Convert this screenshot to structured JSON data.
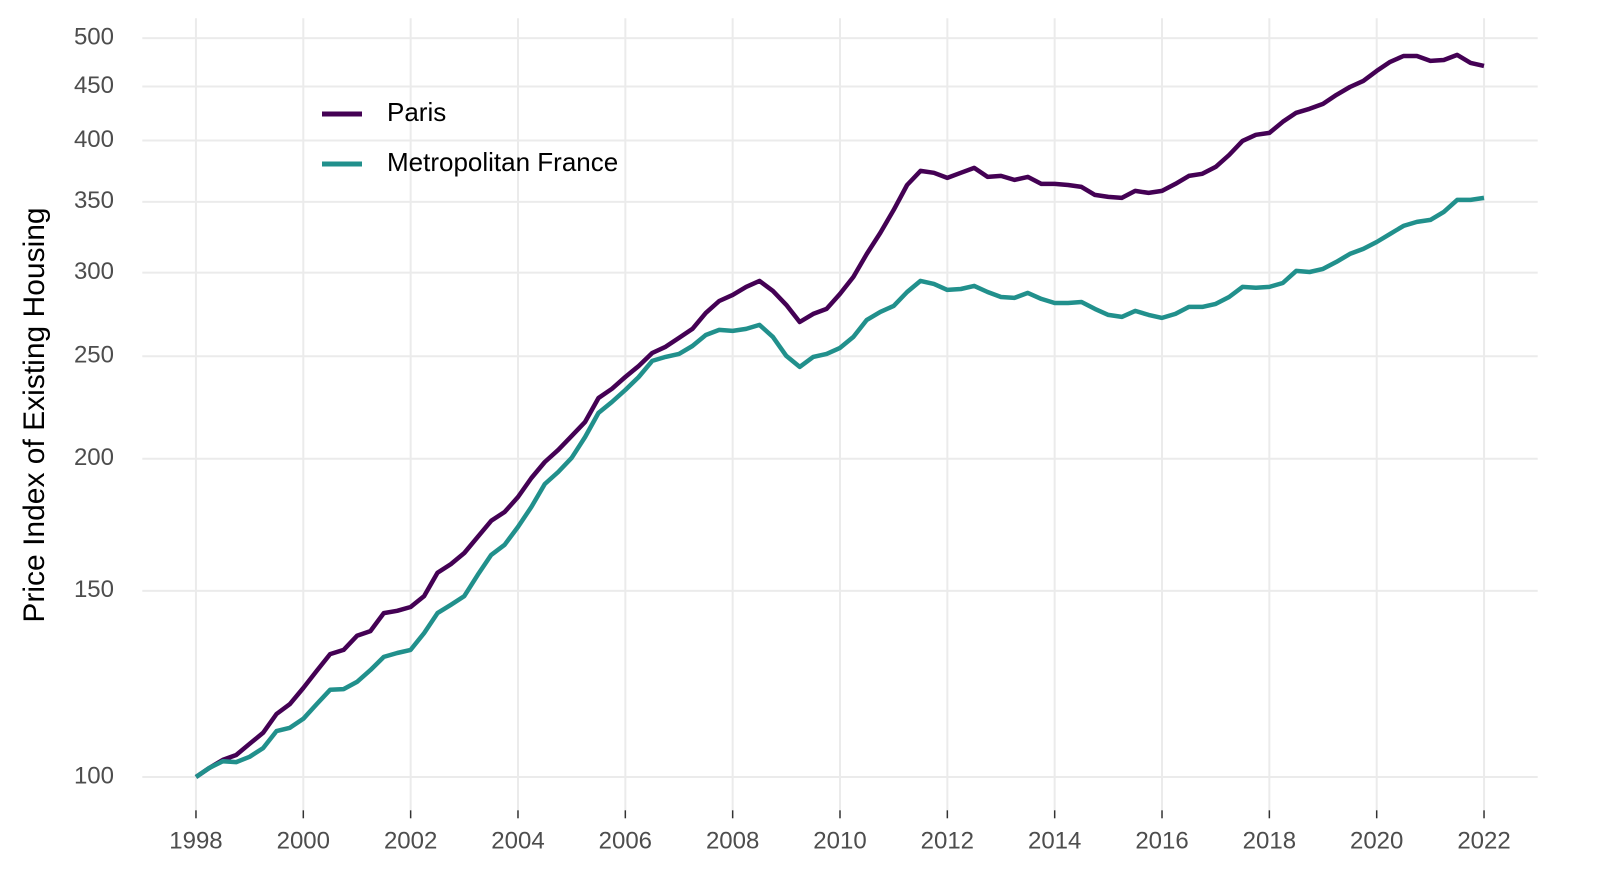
{
  "chart_data": {
    "type": "line",
    "y_label": "Price Index of Existing Housing",
    "log_y": true,
    "grid": true,
    "legend_position": "top-left",
    "x": [
      1998,
      1998.25,
      1998.5,
      1998.75,
      1999,
      1999.25,
      1999.5,
      1999.75,
      2000,
      2000.25,
      2000.5,
      2000.75,
      2001,
      2001.25,
      2001.5,
      2001.75,
      2002,
      2002.25,
      2002.5,
      2002.75,
      2003,
      2003.25,
      2003.5,
      2003.75,
      2004,
      2004.25,
      2004.5,
      2004.75,
      2005,
      2005.25,
      2005.5,
      2005.75,
      2006,
      2006.25,
      2006.5,
      2006.75,
      2007,
      2007.25,
      2007.5,
      2007.75,
      2008,
      2008.25,
      2008.5,
      2008.75,
      2009,
      2009.25,
      2009.5,
      2009.75,
      2010,
      2010.25,
      2010.5,
      2010.75,
      2011,
      2011.25,
      2011.5,
      2011.75,
      2012,
      2012.25,
      2012.5,
      2012.75,
      2013,
      2013.25,
      2013.5,
      2013.75,
      2014,
      2014.25,
      2014.5,
      2014.75,
      2015,
      2015.25,
      2015.5,
      2015.75,
      2016,
      2016.25,
      2016.5,
      2016.75,
      2017,
      2017.25,
      2017.5,
      2017.75,
      2018,
      2018.25,
      2018.5,
      2018.75,
      2019,
      2019.25,
      2019.5,
      2019.75,
      2020,
      2020.25,
      2020.5,
      2020.75,
      2021,
      2021.25,
      2021.5,
      2021.75,
      2022
    ],
    "series": [
      {
        "name": "Paris",
        "color": "#440154",
        "values": [
          100,
          102.0,
          103.8,
          104.9,
          107.5,
          110.1,
          114.7,
          117.2,
          121.4,
          126.0,
          130.7,
          131.9,
          136.0,
          137.4,
          142.9,
          143.6,
          144.8,
          148.3,
          156.0,
          159.0,
          162.9,
          168.7,
          174.7,
          178.1,
          184.0,
          191.8,
          198.6,
          203.9,
          210.2,
          216.7,
          228.3,
          232.9,
          239.0,
          244.8,
          251.8,
          255.2,
          260.2,
          265.4,
          274.8,
          282.0,
          285.8,
          290.8,
          294.6,
          288.3,
          279.6,
          269.4,
          274.2,
          277.2,
          286.4,
          297.2,
          312.5,
          327.1,
          343.9,
          363.1,
          374.4,
          372.8,
          368.7,
          372.8,
          376.8,
          369.5,
          370.3,
          367.1,
          369.5,
          363.9,
          363.9,
          363.1,
          361.6,
          355.3,
          353.8,
          353.0,
          358.4,
          356.9,
          358.4,
          363.9,
          370.3,
          372.0,
          377.7,
          387.6,
          399.7,
          405.0,
          406.7,
          416.6,
          424.9,
          428.6,
          433.2,
          441.8,
          449.5,
          455.5,
          465.5,
          474.7,
          480.9,
          480.9,
          475.7,
          476.7,
          482.0,
          473.7,
          470.6
        ]
      },
      {
        "name": "Metropolitan France",
        "color": "#21908c",
        "values": [
          100,
          102.0,
          103.5,
          103.3,
          104.5,
          106.5,
          110.5,
          111.3,
          113.5,
          117.2,
          120.9,
          121.1,
          123.0,
          126.2,
          129.9,
          131.0,
          131.9,
          136.8,
          142.9,
          145.5,
          148.3,
          155.3,
          162.2,
          165.8,
          172.4,
          180.1,
          189.3,
          194.3,
          200.4,
          209.7,
          221.0,
          226.3,
          232.3,
          239.0,
          247.5,
          249.7,
          251.3,
          255.7,
          261.9,
          264.8,
          264.2,
          265.4,
          267.7,
          260.8,
          250.2,
          244.3,
          249.7,
          251.3,
          254.6,
          260.8,
          270.6,
          275.4,
          279.0,
          287.6,
          294.6,
          292.7,
          288.9,
          289.5,
          291.4,
          287.6,
          284.5,
          283.9,
          287.0,
          283.3,
          280.8,
          280.8,
          281.4,
          277.2,
          273.6,
          272.4,
          276.0,
          273.6,
          271.8,
          274.2,
          278.4,
          278.4,
          280.2,
          284.5,
          290.8,
          290.2,
          290.8,
          293.3,
          301.1,
          300.4,
          302.4,
          307.1,
          312.5,
          315.9,
          320.7,
          326.4,
          332.1,
          335.0,
          336.5,
          342.4,
          351.5,
          351.5,
          353.0
        ]
      }
    ],
    "xlim": [
      1997,
      2023
    ],
    "xticks": [
      1998,
      2000,
      2002,
      2004,
      2006,
      2008,
      2010,
      2012,
      2014,
      2016,
      2018,
      2020,
      2022
    ],
    "ylim": [
      93,
      522
    ],
    "yticks": [
      100,
      150,
      200,
      250,
      300,
      350,
      400,
      450,
      500
    ]
  }
}
